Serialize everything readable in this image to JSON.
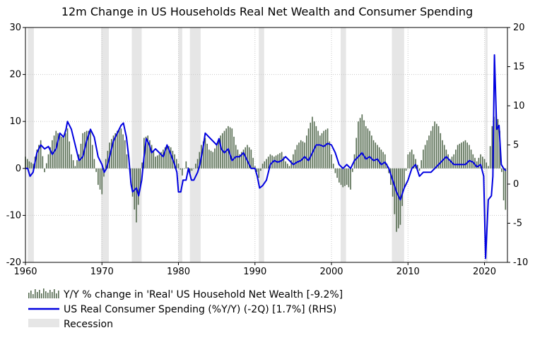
{
  "chart_data": {
    "type": "bar+line",
    "title": "12m Change in US Households Real Net Wealth and Consumer Spending",
    "x_range": [
      1960,
      2023
    ],
    "x_ticks": [
      "1960",
      "1970",
      "1980",
      "1990",
      "2000",
      "2010",
      "2020"
    ],
    "left_axis": {
      "range": [
        -20,
        30
      ],
      "ticks": [
        "-20",
        "-10",
        "0",
        "10",
        "20",
        "30"
      ]
    },
    "right_axis": {
      "range": [
        -10,
        20
      ],
      "ticks": [
        "-10",
        "-5",
        "0",
        "5",
        "10",
        "15",
        "20"
      ]
    },
    "grid": true,
    "colors": {
      "bars": "#556b50",
      "line": "#0000e0",
      "recession": "#e6e6e6",
      "grid": "#c8c8c8"
    },
    "recessions": [
      [
        1960.3,
        1961.1
      ],
      [
        1969.9,
        1970.9
      ],
      [
        1973.9,
        1975.2
      ],
      [
        1980.0,
        1980.5
      ],
      [
        1981.5,
        1982.9
      ],
      [
        1990.5,
        1991.2
      ],
      [
        2001.2,
        2001.9
      ],
      [
        2007.9,
        2009.5
      ],
      [
        2020.1,
        2020.4
      ]
    ],
    "series": [
      {
        "name": "Y/Y % change in 'Real' US Household Net Wealth [-9.2%]",
        "axis": "left",
        "kind": "bar",
        "points": [
          [
            1960.0,
            2.5
          ],
          [
            1960.5,
            1.5
          ],
          [
            1961.0,
            1.0
          ],
          [
            1961.5,
            4.0
          ],
          [
            1962.0,
            6.0
          ],
          [
            1962.5,
            -0.8
          ],
          [
            1963.0,
            3.0
          ],
          [
            1963.5,
            6.0
          ],
          [
            1964.0,
            8.0
          ],
          [
            1964.5,
            7.0
          ],
          [
            1965.0,
            6.5
          ],
          [
            1965.5,
            8.5
          ],
          [
            1966.0,
            3.0
          ],
          [
            1966.5,
            0.5
          ],
          [
            1967.0,
            3.0
          ],
          [
            1967.5,
            7.5
          ],
          [
            1968.0,
            8.0
          ],
          [
            1968.5,
            8.0
          ],
          [
            1969.0,
            2.0
          ],
          [
            1969.5,
            -3.5
          ],
          [
            1970.0,
            -5.5
          ],
          [
            1970.5,
            2.0
          ],
          [
            1971.0,
            5.5
          ],
          [
            1971.5,
            7.0
          ],
          [
            1972.0,
            8.0
          ],
          [
            1972.5,
            8.5
          ],
          [
            1973.0,
            6.0
          ],
          [
            1973.5,
            0.0
          ],
          [
            1974.0,
            -6.0
          ],
          [
            1974.5,
            -11.5
          ],
          [
            1975.0,
            -4.0
          ],
          [
            1975.5,
            6.5
          ],
          [
            1976.0,
            7.0
          ],
          [
            1976.5,
            5.0
          ],
          [
            1977.0,
            2.5
          ],
          [
            1977.5,
            3.0
          ],
          [
            1978.0,
            4.0
          ],
          [
            1978.5,
            5.0
          ],
          [
            1979.0,
            4.5
          ],
          [
            1979.5,
            3.0
          ],
          [
            1980.0,
            1.0
          ],
          [
            1980.5,
            -1.5
          ],
          [
            1981.0,
            1.5
          ],
          [
            1981.5,
            -1.0
          ],
          [
            1982.0,
            0.0
          ],
          [
            1982.5,
            2.0
          ],
          [
            1983.0,
            5.0
          ],
          [
            1983.5,
            6.5
          ],
          [
            1984.0,
            4.0
          ],
          [
            1984.5,
            3.5
          ],
          [
            1985.0,
            5.0
          ],
          [
            1985.5,
            7.0
          ],
          [
            1986.0,
            8.0
          ],
          [
            1986.5,
            9.0
          ],
          [
            1987.0,
            8.5
          ],
          [
            1987.5,
            5.0
          ],
          [
            1988.0,
            3.0
          ],
          [
            1988.5,
            4.0
          ],
          [
            1989.0,
            5.0
          ],
          [
            1989.5,
            4.0
          ],
          [
            1990.0,
            0.5
          ],
          [
            1990.5,
            -2.0
          ],
          [
            1991.0,
            1.0
          ],
          [
            1991.5,
            2.0
          ],
          [
            1992.0,
            3.0
          ],
          [
            1992.5,
            2.5
          ],
          [
            1993.0,
            3.0
          ],
          [
            1993.5,
            3.5
          ],
          [
            1994.0,
            1.5
          ],
          [
            1994.5,
            0.5
          ],
          [
            1995.0,
            3.0
          ],
          [
            1995.5,
            5.0
          ],
          [
            1996.0,
            6.0
          ],
          [
            1996.5,
            5.5
          ],
          [
            1997.0,
            8.5
          ],
          [
            1997.5,
            11.0
          ],
          [
            1998.0,
            9.0
          ],
          [
            1998.5,
            7.0
          ],
          [
            1999.0,
            8.0
          ],
          [
            1999.5,
            8.5
          ],
          [
            2000.0,
            3.0
          ],
          [
            2000.5,
            -1.0
          ],
          [
            2001.0,
            -3.0
          ],
          [
            2001.5,
            -4.0
          ],
          [
            2002.0,
            -3.5
          ],
          [
            2002.5,
            -4.5
          ],
          [
            2003.0,
            3.0
          ],
          [
            2003.5,
            10.0
          ],
          [
            2004.0,
            11.5
          ],
          [
            2004.5,
            9.0
          ],
          [
            2005.0,
            8.0
          ],
          [
            2005.5,
            6.0
          ],
          [
            2006.0,
            5.0
          ],
          [
            2006.5,
            4.0
          ],
          [
            2007.0,
            3.0
          ],
          [
            2007.5,
            -1.0
          ],
          [
            2008.0,
            -6.0
          ],
          [
            2008.5,
            -13.5
          ],
          [
            2009.0,
            -12.0
          ],
          [
            2009.5,
            -4.0
          ],
          [
            2010.0,
            3.0
          ],
          [
            2010.5,
            4.0
          ],
          [
            2011.0,
            2.0
          ],
          [
            2011.5,
            -0.5
          ],
          [
            2012.0,
            4.0
          ],
          [
            2012.5,
            6.0
          ],
          [
            2013.0,
            8.0
          ],
          [
            2013.5,
            10.0
          ],
          [
            2014.0,
            9.0
          ],
          [
            2014.5,
            6.0
          ],
          [
            2015.0,
            4.0
          ],
          [
            2015.5,
            2.0
          ],
          [
            2016.0,
            3.0
          ],
          [
            2016.5,
            5.0
          ],
          [
            2017.0,
            5.5
          ],
          [
            2017.5,
            6.0
          ],
          [
            2018.0,
            5.0
          ],
          [
            2018.5,
            3.0
          ],
          [
            2019.0,
            1.5
          ],
          [
            2019.5,
            3.0
          ],
          [
            2020.0,
            2.0
          ],
          [
            2020.5,
            0.5
          ],
          [
            2021.0,
            9.0
          ],
          [
            2021.5,
            13.0
          ],
          [
            2022.0,
            8.0
          ],
          [
            2022.4,
            -6.0
          ],
          [
            2022.8,
            -9.2
          ]
        ]
      },
      {
        "name": "US Real Consumer Spending (%Y/Y) (-2Q) [1.7%] (RHS)",
        "axis": "right",
        "kind": "line",
        "points": [
          [
            1960.0,
            2.0
          ],
          [
            1960.3,
            2.0
          ],
          [
            1960.6,
            1.0
          ],
          [
            1961.0,
            1.5
          ],
          [
            1961.5,
            4.0
          ],
          [
            1962.0,
            5.0
          ],
          [
            1962.5,
            4.5
          ],
          [
            1963.0,
            4.8
          ],
          [
            1963.5,
            3.8
          ],
          [
            1964.0,
            4.5
          ],
          [
            1964.5,
            6.5
          ],
          [
            1965.0,
            6.0
          ],
          [
            1965.3,
            7.0
          ],
          [
            1965.5,
            8.0
          ],
          [
            1966.0,
            7.0
          ],
          [
            1966.5,
            5.0
          ],
          [
            1967.0,
            3.0
          ],
          [
            1967.5,
            3.5
          ],
          [
            1968.0,
            5.5
          ],
          [
            1968.5,
            7.0
          ],
          [
            1969.0,
            6.0
          ],
          [
            1969.5,
            3.5
          ],
          [
            1970.0,
            2.5
          ],
          [
            1970.3,
            1.5
          ],
          [
            1970.6,
            2.0
          ],
          [
            1971.0,
            3.5
          ],
          [
            1971.5,
            5.5
          ],
          [
            1972.0,
            6.5
          ],
          [
            1972.5,
            7.5
          ],
          [
            1972.8,
            7.8
          ],
          [
            1973.2,
            6.0
          ],
          [
            1973.5,
            3.5
          ],
          [
            1973.8,
            0.0
          ],
          [
            1974.0,
            -1.0
          ],
          [
            1974.5,
            -0.5
          ],
          [
            1974.8,
            -1.5
          ],
          [
            1975.2,
            0.5
          ],
          [
            1975.5,
            3.5
          ],
          [
            1975.8,
            5.8
          ],
          [
            1976.2,
            5.0
          ],
          [
            1976.5,
            4.0
          ],
          [
            1977.0,
            4.5
          ],
          [
            1977.5,
            4.0
          ],
          [
            1978.0,
            3.5
          ],
          [
            1978.5,
            5.0
          ],
          [
            1979.0,
            3.8
          ],
          [
            1979.5,
            2.5
          ],
          [
            1979.8,
            1.5
          ],
          [
            1980.0,
            -1.0
          ],
          [
            1980.3,
            -1.0
          ],
          [
            1980.6,
            0.5
          ],
          [
            1981.0,
            0.5
          ],
          [
            1981.3,
            2.0
          ],
          [
            1981.7,
            0.5
          ],
          [
            1982.0,
            0.5
          ],
          [
            1982.5,
            1.5
          ],
          [
            1982.8,
            2.5
          ],
          [
            1983.2,
            4.5
          ],
          [
            1983.5,
            6.5
          ],
          [
            1984.0,
            6.0
          ],
          [
            1984.5,
            5.5
          ],
          [
            1985.0,
            5.0
          ],
          [
            1985.3,
            5.8
          ],
          [
            1985.6,
            4.5
          ],
          [
            1986.0,
            4.0
          ],
          [
            1986.5,
            4.5
          ],
          [
            1987.0,
            3.0
          ],
          [
            1987.5,
            3.5
          ],
          [
            1988.0,
            3.5
          ],
          [
            1988.5,
            4.0
          ],
          [
            1989.0,
            3.0
          ],
          [
            1989.5,
            2.0
          ],
          [
            1990.0,
            2.0
          ],
          [
            1990.3,
            1.0
          ],
          [
            1990.6,
            -0.5
          ],
          [
            1991.0,
            -0.2
          ],
          [
            1991.5,
            0.5
          ],
          [
            1992.0,
            2.5
          ],
          [
            1992.5,
            3.0
          ],
          [
            1993.0,
            2.8
          ],
          [
            1993.5,
            3.0
          ],
          [
            1994.0,
            3.5
          ],
          [
            1994.5,
            3.0
          ],
          [
            1995.0,
            2.5
          ],
          [
            1995.5,
            2.8
          ],
          [
            1996.0,
            3.0
          ],
          [
            1996.5,
            3.5
          ],
          [
            1997.0,
            3.0
          ],
          [
            1997.5,
            4.0
          ],
          [
            1998.0,
            5.0
          ],
          [
            1998.5,
            5.0
          ],
          [
            1999.0,
            4.8
          ],
          [
            1999.5,
            5.2
          ],
          [
            2000.0,
            5.0
          ],
          [
            2000.5,
            4.0
          ],
          [
            2001.0,
            2.5
          ],
          [
            2001.5,
            2.0
          ],
          [
            2002.0,
            2.5
          ],
          [
            2002.5,
            2.0
          ],
          [
            2003.0,
            3.0
          ],
          [
            2003.5,
            3.5
          ],
          [
            2004.0,
            4.0
          ],
          [
            2004.5,
            3.2
          ],
          [
            2005.0,
            3.5
          ],
          [
            2005.5,
            3.0
          ],
          [
            2006.0,
            3.2
          ],
          [
            2006.5,
            2.5
          ],
          [
            2007.0,
            2.8
          ],
          [
            2007.5,
            2.0
          ],
          [
            2008.0,
            0.5
          ],
          [
            2008.5,
            -1.0
          ],
          [
            2009.0,
            -2.0
          ],
          [
            2009.5,
            -0.5
          ],
          [
            2010.0,
            0.5
          ],
          [
            2010.5,
            2.0
          ],
          [
            2011.0,
            2.5
          ],
          [
            2011.5,
            1.0
          ],
          [
            2012.0,
            1.5
          ],
          [
            2012.5,
            1.5
          ],
          [
            2013.0,
            1.5
          ],
          [
            2013.5,
            2.0
          ],
          [
            2014.0,
            2.5
          ],
          [
            2014.5,
            3.0
          ],
          [
            2015.0,
            3.5
          ],
          [
            2015.5,
            3.0
          ],
          [
            2016.0,
            2.5
          ],
          [
            2016.5,
            2.5
          ],
          [
            2017.0,
            2.5
          ],
          [
            2017.5,
            2.5
          ],
          [
            2018.0,
            3.0
          ],
          [
            2018.5,
            2.8
          ],
          [
            2019.0,
            2.2
          ],
          [
            2019.5,
            2.5
          ],
          [
            2019.9,
            1.0
          ],
          [
            2020.15,
            -9.5
          ],
          [
            2020.5,
            -2.0
          ],
          [
            2020.9,
            -1.5
          ],
          [
            2021.1,
            1.0
          ],
          [
            2021.3,
            16.5
          ],
          [
            2021.6,
            7.0
          ],
          [
            2021.9,
            7.5
          ],
          [
            2022.2,
            2.5
          ],
          [
            2022.5,
            2.0
          ],
          [
            2022.8,
            1.7
          ]
        ]
      },
      {
        "name": "Recession",
        "kind": "shading"
      }
    ]
  }
}
